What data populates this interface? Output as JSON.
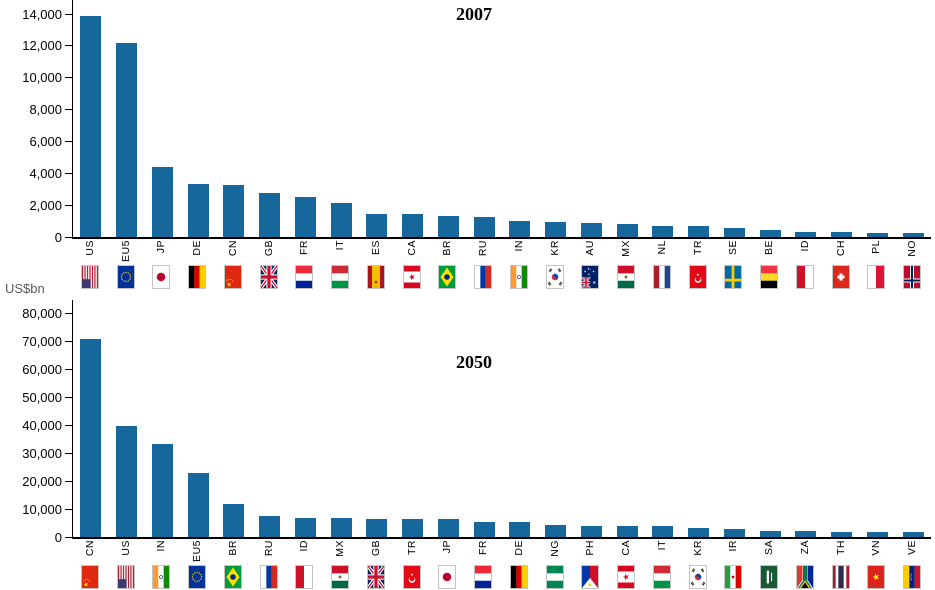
{
  "unit_label": "US$bn",
  "bar_color": "#16689C",
  "chart_data": [
    {
      "type": "bar",
      "title": "2007",
      "ylabel": "US$bn",
      "ylim": [
        0,
        14000
      ],
      "ytick_interval": 2000,
      "yticks": [
        "0",
        "2,000",
        "4,000",
        "6,000",
        "8,000",
        "10,000",
        "12,000",
        "14,000"
      ],
      "grid": false,
      "legend": "none",
      "categories": [
        "US",
        "EU5",
        "JP",
        "DE",
        "CN",
        "GB",
        "FR",
        "IT",
        "ES",
        "CA",
        "BR",
        "RU",
        "IN",
        "KR",
        "AU",
        "MX",
        "NL",
        "TR",
        "SE",
        "BE",
        "ID",
        "CH",
        "PL",
        "NO"
      ],
      "values": [
        13900,
        12200,
        4400,
        3320,
        3250,
        2770,
        2520,
        2130,
        1450,
        1440,
        1300,
        1290,
        1000,
        950,
        870,
        840,
        700,
        680,
        580,
        420,
        300,
        290,
        280,
        260
      ],
      "flags": [
        "us",
        "eu",
        "jp",
        "de",
        "cn",
        "gb",
        "fr",
        "it",
        "es",
        "ca",
        "br",
        "ru",
        "in",
        "kr",
        "au",
        "mx",
        "nl",
        "tr",
        "se",
        "be",
        "id",
        "ch",
        "pl",
        "no"
      ]
    },
    {
      "type": "bar",
      "title": "2050",
      "ylabel": "US$bn",
      "ylim": [
        0,
        80000
      ],
      "ytick_interval": 10000,
      "yticks": [
        "0",
        "10,000",
        "20,000",
        "30,000",
        "40,000",
        "50,000",
        "60,000",
        "70,000",
        "80,000"
      ],
      "grid": false,
      "legend": "none",
      "categories": [
        "CN",
        "US",
        "IN",
        "EU5",
        "BR",
        "RU",
        "ID",
        "MX",
        "GB",
        "TR",
        "JP",
        "FR",
        "DE",
        "NG",
        "PH",
        "CA",
        "IT",
        "KR",
        "IR",
        "SA",
        "ZA",
        "TH",
        "VN",
        "VE"
      ],
      "values": [
        70900,
        39500,
        33400,
        23000,
        11800,
        7600,
        6900,
        6800,
        6500,
        6400,
        6300,
        5500,
        5400,
        4200,
        4000,
        3900,
        3850,
        3400,
        2700,
        2200,
        2150,
        1900,
        1850,
        1750
      ],
      "flags": [
        "cn",
        "us",
        "in",
        "eu",
        "br",
        "ru",
        "id",
        "mx",
        "gb",
        "tr",
        "jp",
        "fr",
        "de",
        "ng",
        "ph",
        "ca",
        "it",
        "kr",
        "ir",
        "sa",
        "za",
        "th",
        "vn",
        "ve"
      ]
    }
  ]
}
